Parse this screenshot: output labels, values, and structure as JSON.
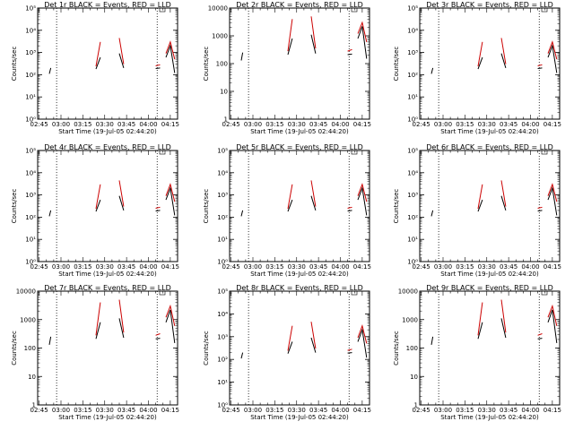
{
  "chart_data": [
    {
      "type": "line",
      "title": "Det 1r BLACK = Events, RED = LLD",
      "xlabel": "Start Time (19-Jul-05 02:44:20)",
      "ylabel": "Counts/sec",
      "yscale": "log",
      "ylim": [
        1,
        100000
      ],
      "ytick_labels": [
        "10⁰",
        "10¹",
        "10²",
        "10³",
        "10⁴",
        "10⁵"
      ],
      "xtick_labels": [
        "02:45",
        "03:00",
        "03:15",
        "03:30",
        "03:45",
        "04:00",
        "04:15"
      ],
      "dotted_lines_at": [
        "02:57",
        "04:06"
      ],
      "series": [
        {
          "name": "Events",
          "color": "#000000",
          "x": [
            "02:45",
            "02:52",
            "02:53",
            "03:13",
            "03:19",
            "03:24",
            "03:27",
            "03:33",
            "03:40",
            "03:43",
            "04:05",
            "04:08",
            "04:12",
            "04:15",
            "04:18"
          ],
          "y": [
            110,
            110,
            200,
            160,
            160,
            180,
            600,
            900,
            900,
            200,
            190,
            200,
            600,
            2000,
            120
          ]
        },
        {
          "name": "LLD",
          "color": "#cc0000",
          "x": [
            "02:45",
            "03:13",
            "03:19",
            "03:24",
            "03:27",
            "03:33",
            "03:40",
            "03:43",
            "04:05",
            "04:08",
            "04:12",
            "04:15",
            "04:18"
          ],
          "y": [
            300,
            200,
            210,
            240,
            3000,
            5500,
            4500,
            300,
            250,
            280,
            900,
            3000,
            500
          ]
        }
      ]
    },
    {
      "type": "line",
      "title": "Det 2r BLACK = Events, RED = LLD",
      "xlabel": "Start Time (19-Jul-05 02:44:20)",
      "ylabel": "Counts/sec",
      "yscale": "log",
      "ylim": [
        1,
        10000
      ],
      "ytick_labels": [
        "1",
        "10",
        "100",
        "1000",
        "10000"
      ],
      "xtick_labels": [
        "02:45",
        "03:00",
        "03:15",
        "03:30",
        "03:45",
        "04:00",
        "04:15"
      ],
      "dotted_lines_at": [
        "02:57",
        "04:06"
      ],
      "series": [
        {
          "name": "Events",
          "color": "#000000",
          "x": [
            "02:45",
            "02:52",
            "02:53",
            "03:13",
            "03:19",
            "03:24",
            "03:27",
            "03:33",
            "03:40",
            "03:43",
            "04:05",
            "04:08",
            "04:12",
            "04:15",
            "04:18"
          ],
          "y": [
            130,
            130,
            250,
            180,
            190,
            210,
            800,
            1200,
            1100,
            230,
            210,
            220,
            800,
            2200,
            150
          ]
        },
        {
          "name": "LLD",
          "color": "#cc0000",
          "x": [
            "02:45",
            "03:13",
            "03:19",
            "03:24",
            "03:27",
            "03:33",
            "03:40",
            "03:43",
            "04:05",
            "04:08",
            "04:12",
            "04:15",
            "04:18"
          ],
          "y": [
            400,
            230,
            250,
            280,
            4000,
            6000,
            5000,
            350,
            280,
            320,
            1200,
            3000,
            600
          ]
        }
      ]
    },
    {
      "type": "line",
      "title": "Det 3r BLACK = Events, RED = LLD",
      "xlabel": "Start Time (19-Jul-05 02:44:20)",
      "ylabel": "Counts/sec",
      "yscale": "log",
      "ylim": [
        1,
        100000
      ],
      "ytick_labels": [
        "10⁰",
        "10¹",
        "10²",
        "10³",
        "10⁴",
        "10⁵"
      ],
      "xtick_labels": [
        "02:45",
        "03:00",
        "03:15",
        "03:30",
        "03:45",
        "04:00",
        "04:15"
      ],
      "dotted_lines_at": [
        "02:57",
        "04:06"
      ],
      "series": [
        {
          "name": "Events",
          "color": "#000000",
          "x": [
            "02:45",
            "02:52",
            "02:53",
            "03:13",
            "03:19",
            "03:24",
            "03:27",
            "03:33",
            "03:40",
            "03:43",
            "04:05",
            "04:08",
            "04:12",
            "04:15",
            "04:18"
          ],
          "y": [
            110,
            110,
            200,
            160,
            160,
            180,
            600,
            900,
            900,
            200,
            190,
            200,
            600,
            2000,
            120
          ]
        },
        {
          "name": "LLD",
          "color": "#cc0000",
          "x": [
            "02:45",
            "03:13",
            "03:19",
            "03:24",
            "03:27",
            "03:33",
            "03:40",
            "03:43",
            "04:05",
            "04:08",
            "04:12",
            "04:15",
            "04:18"
          ],
          "y": [
            300,
            200,
            210,
            240,
            3000,
            5500,
            4500,
            300,
            250,
            280,
            900,
            3000,
            500
          ]
        }
      ]
    },
    {
      "type": "line",
      "title": "Det 4r BLACK = Events, RED = LLD",
      "xlabel": "Start Time (19-Jul-05 02:44:20)",
      "ylabel": "Counts/sec",
      "yscale": "log",
      "ylim": [
        1,
        100000
      ],
      "ytick_labels": [
        "10⁰",
        "10¹",
        "10²",
        "10³",
        "10⁴",
        "10⁵"
      ],
      "xtick_labels": [
        "02:45",
        "03:00",
        "03:15",
        "03:30",
        "03:45",
        "04:00",
        "04:15"
      ],
      "dotted_lines_at": [
        "02:57",
        "04:06"
      ],
      "series": [
        {
          "name": "Events",
          "color": "#000000",
          "x": [
            "02:45",
            "02:52",
            "02:53",
            "03:13",
            "03:19",
            "03:24",
            "03:27",
            "03:33",
            "03:40",
            "03:43",
            "04:05",
            "04:08",
            "04:12",
            "04:15",
            "04:18"
          ],
          "y": [
            110,
            110,
            200,
            160,
            160,
            180,
            600,
            900,
            900,
            200,
            190,
            200,
            600,
            2000,
            120
          ]
        },
        {
          "name": "LLD",
          "color": "#cc0000",
          "x": [
            "02:45",
            "03:13",
            "03:19",
            "03:24",
            "03:27",
            "03:33",
            "03:40",
            "03:43",
            "04:05",
            "04:08",
            "04:12",
            "04:15",
            "04:18"
          ],
          "y": [
            300,
            200,
            210,
            240,
            3000,
            5500,
            4500,
            300,
            250,
            280,
            900,
            3000,
            500
          ]
        }
      ]
    },
    {
      "type": "line",
      "title": "Det 5r BLACK = Events, RED = LLD",
      "xlabel": "Start Time (19-Jul-05 02:44:20)",
      "ylabel": "Counts/sec",
      "yscale": "log",
      "ylim": [
        1,
        100000
      ],
      "ytick_labels": [
        "10⁰",
        "10¹",
        "10²",
        "10³",
        "10⁴",
        "10⁵"
      ],
      "xtick_labels": [
        "02:45",
        "03:00",
        "03:15",
        "03:30",
        "03:45",
        "04:00",
        "04:15"
      ],
      "dotted_lines_at": [
        "02:57",
        "04:06"
      ],
      "series": [
        {
          "name": "Events",
          "color": "#000000",
          "x": [
            "02:45",
            "02:52",
            "02:53",
            "03:13",
            "03:19",
            "03:24",
            "03:27",
            "03:33",
            "03:40",
            "03:43",
            "04:05",
            "04:08",
            "04:12",
            "04:15",
            "04:18"
          ],
          "y": [
            110,
            110,
            200,
            160,
            160,
            180,
            600,
            900,
            900,
            200,
            190,
            200,
            600,
            2000,
            120
          ]
        },
        {
          "name": "LLD",
          "color": "#cc0000",
          "x": [
            "02:45",
            "03:13",
            "03:19",
            "03:24",
            "03:27",
            "03:33",
            "03:40",
            "03:43",
            "04:05",
            "04:08",
            "04:12",
            "04:15",
            "04:18"
          ],
          "y": [
            300,
            200,
            210,
            240,
            3000,
            5500,
            4500,
            300,
            250,
            280,
            900,
            3000,
            500
          ]
        }
      ]
    },
    {
      "type": "line",
      "title": "Det 6r BLACK = Events, RED = LLD",
      "xlabel": "Start Time (19-Jul-05 02:44:20)",
      "ylabel": "Counts/sec",
      "yscale": "log",
      "ylim": [
        1,
        100000
      ],
      "ytick_labels": [
        "10⁰",
        "10¹",
        "10²",
        "10³",
        "10⁴",
        "10⁵"
      ],
      "xtick_labels": [
        "02:45",
        "03:00",
        "03:15",
        "03:30",
        "03:45",
        "04:00",
        "04:15"
      ],
      "dotted_lines_at": [
        "02:57",
        "04:06"
      ],
      "series": [
        {
          "name": "Events",
          "color": "#000000",
          "x": [
            "02:45",
            "02:52",
            "02:53",
            "03:13",
            "03:19",
            "03:24",
            "03:27",
            "03:33",
            "03:40",
            "03:43",
            "04:05",
            "04:08",
            "04:12",
            "04:15",
            "04:18"
          ],
          "y": [
            110,
            110,
            200,
            160,
            160,
            180,
            600,
            900,
            900,
            200,
            190,
            200,
            600,
            2000,
            120
          ]
        },
        {
          "name": "LLD",
          "color": "#cc0000",
          "x": [
            "02:45",
            "03:13",
            "03:19",
            "03:24",
            "03:27",
            "03:33",
            "03:40",
            "03:43",
            "04:05",
            "04:08",
            "04:12",
            "04:15",
            "04:18"
          ],
          "y": [
            300,
            200,
            210,
            240,
            3000,
            5500,
            4500,
            300,
            250,
            280,
            900,
            3000,
            500
          ]
        }
      ]
    },
    {
      "type": "line",
      "title": "Det 7r BLACK = Events, RED = LLD",
      "xlabel": "Start Time (19-Jul-05 02:44:20)",
      "ylabel": "Counts/sec",
      "yscale": "log",
      "ylim": [
        1,
        10000
      ],
      "ytick_labels": [
        "1",
        "10",
        "100",
        "1000",
        "10000"
      ],
      "xtick_labels": [
        "02:45",
        "03:00",
        "03:15",
        "03:30",
        "03:45",
        "04:00",
        "04:15"
      ],
      "dotted_lines_at": [
        "02:57",
        "04:06"
      ],
      "series": [
        {
          "name": "Events",
          "color": "#000000",
          "x": [
            "02:45",
            "02:52",
            "02:53",
            "03:13",
            "03:19",
            "03:24",
            "03:27",
            "03:33",
            "03:40",
            "03:43",
            "04:05",
            "04:08",
            "04:12",
            "04:15",
            "04:18"
          ],
          "y": [
            130,
            130,
            250,
            180,
            190,
            210,
            800,
            1200,
            1100,
            230,
            210,
            220,
            800,
            2200,
            150
          ]
        },
        {
          "name": "LLD",
          "color": "#cc0000",
          "x": [
            "02:45",
            "03:13",
            "03:19",
            "03:24",
            "03:27",
            "03:33",
            "03:40",
            "03:43",
            "04:05",
            "04:08",
            "04:12",
            "04:15",
            "04:18"
          ],
          "y": [
            400,
            230,
            250,
            280,
            4000,
            6000,
            5000,
            350,
            280,
            320,
            1200,
            3000,
            600
          ]
        }
      ]
    },
    {
      "type": "line",
      "title": "Det 8r BLACK = Events, RED = LLD",
      "xlabel": "Start Time (19-Jul-05 02:44:20)",
      "ylabel": "Counts/sec",
      "yscale": "log",
      "ylim": [
        1,
        100000
      ],
      "ytick_labels": [
        "10⁰",
        "10¹",
        "10²",
        "10³",
        "10⁴",
        "10⁵"
      ],
      "xtick_labels": [
        "02:45",
        "03:00",
        "03:15",
        "03:30",
        "03:45",
        "04:00",
        "04:15"
      ],
      "dotted_lines_at": [
        "02:57",
        "04:06"
      ],
      "series": [
        {
          "name": "Events",
          "color": "#000000",
          "x": [
            "02:45",
            "02:52",
            "02:53",
            "03:13",
            "03:19",
            "03:24",
            "03:27",
            "03:33",
            "03:40",
            "03:43",
            "04:05",
            "04:08",
            "04:12",
            "04:15",
            "04:18"
          ],
          "y": [
            110,
            110,
            200,
            160,
            160,
            180,
            600,
            900,
            900,
            200,
            190,
            200,
            600,
            2000,
            120
          ]
        },
        {
          "name": "LLD",
          "color": "#cc0000",
          "x": [
            "02:45",
            "03:13",
            "03:19",
            "03:24",
            "03:27",
            "03:33",
            "03:40",
            "03:43",
            "04:05",
            "04:08",
            "04:12",
            "04:15",
            "04:18"
          ],
          "y": [
            300,
            200,
            210,
            240,
            3000,
            5500,
            4500,
            300,
            250,
            280,
            900,
            3000,
            500
          ]
        }
      ]
    },
    {
      "type": "line",
      "title": "Det 9r BLACK = Events, RED = LLD",
      "xlabel": "Start Time (19-Jul-05 02:44:20)",
      "ylabel": "Counts/sec",
      "yscale": "log",
      "ylim": [
        1,
        10000
      ],
      "ytick_labels": [
        "1",
        "10",
        "100",
        "1000",
        "10000"
      ],
      "xtick_labels": [
        "02:45",
        "03:00",
        "03:15",
        "03:30",
        "03:45",
        "04:00",
        "04:15"
      ],
      "dotted_lines_at": [
        "02:57",
        "04:06"
      ],
      "series": [
        {
          "name": "Events",
          "color": "#000000",
          "x": [
            "02:45",
            "02:52",
            "02:53",
            "03:13",
            "03:19",
            "03:24",
            "03:27",
            "03:33",
            "03:40",
            "03:43",
            "04:05",
            "04:08",
            "04:12",
            "04:15",
            "04:18"
          ],
          "y": [
            130,
            130,
            250,
            180,
            190,
            210,
            800,
            1200,
            1100,
            230,
            210,
            220,
            800,
            2200,
            150
          ]
        },
        {
          "name": "LLD",
          "color": "#cc0000",
          "x": [
            "02:45",
            "03:13",
            "03:19",
            "03:24",
            "03:27",
            "03:33",
            "03:40",
            "03:43",
            "04:05",
            "04:08",
            "04:12",
            "04:15",
            "04:18"
          ],
          "y": [
            400,
            230,
            250,
            280,
            4000,
            6000,
            5000,
            350,
            280,
            320,
            1200,
            3000,
            600
          ]
        }
      ]
    }
  ]
}
